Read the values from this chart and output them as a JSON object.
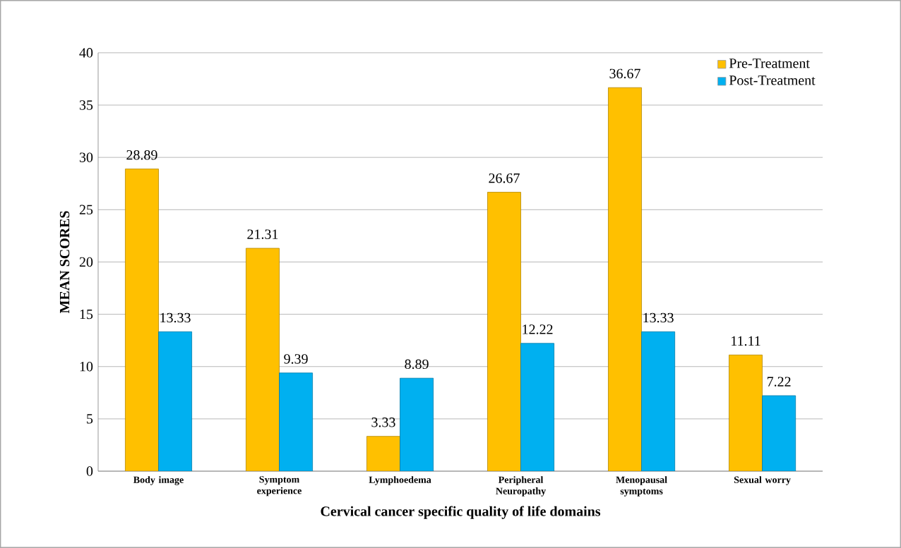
{
  "chart_data": {
    "type": "bar",
    "xlabel": "Cervical cancer specific quality of life domains",
    "ylabel": "MEAN SCORES",
    "categories": [
      "Body image",
      "Symptom experience",
      "Lymphoedema",
      "Peripheral Neuropathy",
      "Menopausal symptoms",
      "Sexual worry"
    ],
    "series": [
      {
        "name": "Pre-Treatment",
        "color": "#ffc000",
        "values": [
          28.89,
          21.31,
          3.33,
          26.67,
          36.67,
          11.11
        ]
      },
      {
        "name": "Post-Treatment",
        "color": "#00b0f0",
        "values": [
          13.33,
          9.39,
          8.89,
          12.22,
          13.33,
          7.22
        ]
      }
    ],
    "ylim": [
      0,
      40
    ],
    "yticks": [
      0,
      5,
      10,
      15,
      20,
      25,
      30,
      35,
      40
    ],
    "grid": "y",
    "legend": "top right",
    "data_labels": true
  }
}
